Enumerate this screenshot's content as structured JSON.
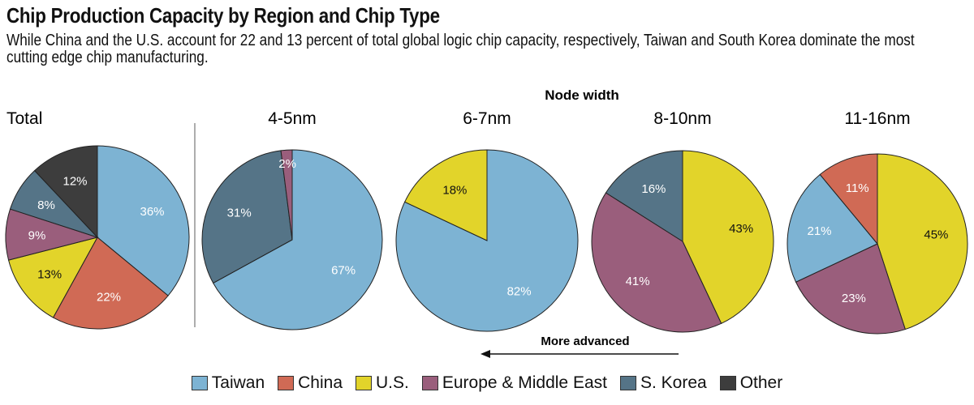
{
  "chart_data": {
    "type": "pie",
    "title": "Chip Production Capacity by Region and Chip Type",
    "subtitle": "While China and the U.S. account for 22 and 13 percent of total global logic chip capacity, respectively, Taiwan and South Korea dominate the most cutting edge chip manufacturing.",
    "group_label": "Node width",
    "arrow_label": "More advanced",
    "legend": [
      {
        "name": "Taiwan",
        "color": "#7db3d3"
      },
      {
        "name": "China",
        "color": "#d06a55"
      },
      {
        "name": "U.S.",
        "color": "#e2d42a"
      },
      {
        "name": "Europe & Middle East",
        "color": "#9a5e7c"
      },
      {
        "name": "S. Korea",
        "color": "#557487"
      },
      {
        "name": "Other",
        "color": "#3d3d3d"
      }
    ],
    "pies": [
      {
        "title": "Total",
        "slices": [
          {
            "name": "Taiwan",
            "value": 36,
            "label": "36%"
          },
          {
            "name": "China",
            "value": 22,
            "label": "22%"
          },
          {
            "name": "U.S.",
            "value": 13,
            "label": "13%"
          },
          {
            "name": "Europe & Middle East",
            "value": 9,
            "label": "9%"
          },
          {
            "name": "S. Korea",
            "value": 8,
            "label": "8%"
          },
          {
            "name": "Other",
            "value": 12,
            "label": "12%"
          }
        ]
      },
      {
        "title": "4-5nm",
        "slices": [
          {
            "name": "Taiwan",
            "value": 67,
            "label": "67%"
          },
          {
            "name": "S. Korea",
            "value": 31,
            "label": "31%"
          },
          {
            "name": "Europe & Middle East",
            "value": 2,
            "label": "2%"
          }
        ]
      },
      {
        "title": "6-7nm",
        "slices": [
          {
            "name": "Taiwan",
            "value": 82,
            "label": "82%"
          },
          {
            "name": "U.S.",
            "value": 18,
            "label": "18%"
          }
        ]
      },
      {
        "title": "8-10nm",
        "slices": [
          {
            "name": "U.S.",
            "value": 43,
            "label": "43%"
          },
          {
            "name": "Europe & Middle East",
            "value": 41,
            "label": "41%"
          },
          {
            "name": "S. Korea",
            "value": 16,
            "label": "16%"
          }
        ]
      },
      {
        "title": "11-16nm",
        "slices": [
          {
            "name": "U.S.",
            "value": 45,
            "label": "45%"
          },
          {
            "name": "Europe & Middle East",
            "value": 23,
            "label": "23%"
          },
          {
            "name": "Taiwan",
            "value": 21,
            "label": "21%"
          },
          {
            "name": "China",
            "value": 11,
            "label": "11%"
          }
        ]
      }
    ]
  }
}
